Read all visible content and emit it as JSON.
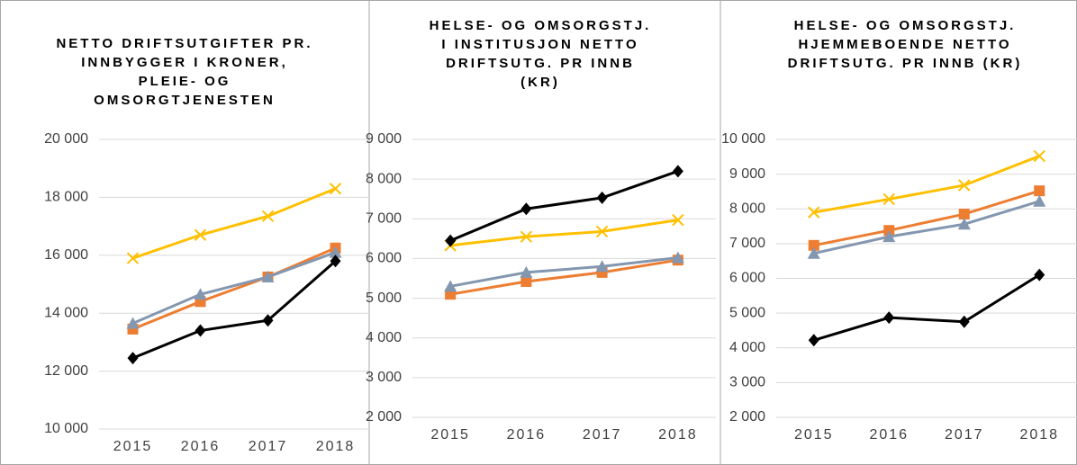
{
  "chart_data": [
    {
      "type": "line",
      "title": "NETTO DRIFTSUTGIFTER PR. INNBYGGER I KRONER, PLEIE- OG OMSORGTJENESTEN",
      "categories": [
        "2015",
        "2016",
        "2017",
        "2018"
      ],
      "ylim": [
        10000,
        20000
      ],
      "yticks": [
        {
          "value": 10000,
          "label": "10 000"
        },
        {
          "value": 12000,
          "label": "12 000"
        },
        {
          "value": 14000,
          "label": "14 000"
        },
        {
          "value": 16000,
          "label": "16 000"
        },
        {
          "value": 18000,
          "label": "18 000"
        },
        {
          "value": 20000,
          "label": "20 000"
        }
      ],
      "grid": true,
      "series": [
        {
          "color": "#ffc000",
          "marker": "x",
          "values": [
            15900,
            16700,
            17350,
            18300
          ]
        },
        {
          "color": "#ed7d31",
          "marker": "square",
          "values": [
            13450,
            14400,
            15250,
            16250
          ]
        },
        {
          "color": "#8497b0",
          "marker": "triangle",
          "values": [
            13650,
            14650,
            15250,
            16100
          ]
        },
        {
          "color": "#000000",
          "marker": "diamond",
          "values": [
            12450,
            13400,
            13750,
            15800
          ]
        }
      ]
    },
    {
      "type": "line",
      "title": "HELSE- OG OMSORGSTJ. I INSTITUSJON NETTO DRIFTSUTG. PR INNB (KR)",
      "categories": [
        "2015",
        "2016",
        "2017",
        "2018"
      ],
      "ylim": [
        2000,
        9000
      ],
      "yticks": [
        {
          "value": 2000,
          "label": "2 000"
        },
        {
          "value": 3000,
          "label": "3 000"
        },
        {
          "value": 4000,
          "label": "4 000"
        },
        {
          "value": 5000,
          "label": "5 000"
        },
        {
          "value": 6000,
          "label": "6 000"
        },
        {
          "value": 7000,
          "label": "7 000"
        },
        {
          "value": 8000,
          "label": "8 000"
        },
        {
          "value": 9000,
          "label": "9 000"
        }
      ],
      "grid": true,
      "series": [
        {
          "color": "#ffc000",
          "marker": "x",
          "values": [
            6330,
            6550,
            6680,
            6970
          ]
        },
        {
          "color": "#ed7d31",
          "marker": "square",
          "values": [
            5100,
            5420,
            5650,
            5960
          ]
        },
        {
          "color": "#8497b0",
          "marker": "triangle",
          "values": [
            5300,
            5650,
            5800,
            6020
          ]
        },
        {
          "color": "#000000",
          "marker": "diamond",
          "values": [
            6450,
            7250,
            7530,
            8200
          ]
        }
      ]
    },
    {
      "type": "line",
      "title": "HELSE- OG OMSORGSTJ. HJEMMEBOENDE NETTO DRIFTSUTG. PR INNB (KR)",
      "categories": [
        "2015",
        "2016",
        "2017",
        "2018"
      ],
      "ylim": [
        2000,
        10000
      ],
      "yticks": [
        {
          "value": 2000,
          "label": "2 000"
        },
        {
          "value": 3000,
          "label": "3 000"
        },
        {
          "value": 4000,
          "label": "4 000"
        },
        {
          "value": 5000,
          "label": "5 000"
        },
        {
          "value": 6000,
          "label": "6 000"
        },
        {
          "value": 7000,
          "label": "7 000"
        },
        {
          "value": 8000,
          "label": "8 000"
        },
        {
          "value": 9000,
          "label": "9 000"
        },
        {
          "value": 10000,
          "label": "10 000"
        }
      ],
      "grid": true,
      "series": [
        {
          "color": "#ffc000",
          "marker": "x",
          "values": [
            7900,
            8280,
            8680,
            9520
          ]
        },
        {
          "color": "#ed7d31",
          "marker": "square",
          "values": [
            6950,
            7380,
            7850,
            8520
          ]
        },
        {
          "color": "#8497b0",
          "marker": "triangle",
          "values": [
            6720,
            7200,
            7560,
            8220
          ]
        },
        {
          "color": "#000000",
          "marker": "diamond",
          "values": [
            4220,
            4870,
            4750,
            6100
          ]
        }
      ]
    }
  ]
}
